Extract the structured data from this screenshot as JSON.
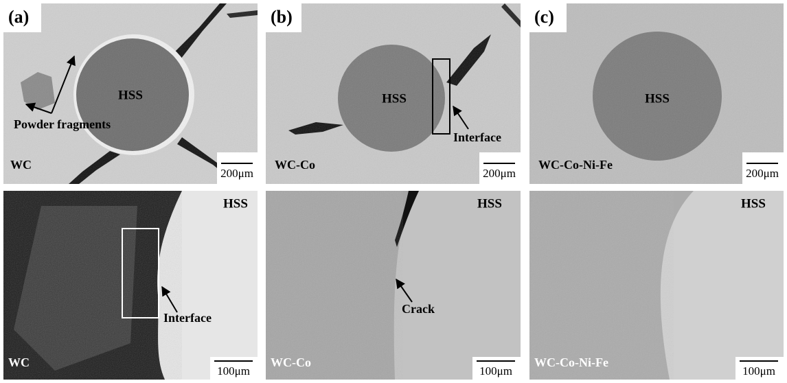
{
  "panels": [
    {
      "label": "(a)",
      "top": {
        "region": "HSS",
        "annotation": "Powder fragments",
        "material": "WC",
        "scale": "200μm"
      },
      "bottom": {
        "region": "HSS",
        "annotation": "Interface",
        "material": "WC",
        "scale": "100μm"
      }
    },
    {
      "label": "(b)",
      "top": {
        "region": "HSS",
        "annotation": "Interface",
        "material": "WC-Co",
        "scale": "200μm"
      },
      "bottom": {
        "region": "HSS",
        "annotation": "Crack",
        "material": "WC-Co",
        "scale": "100μm"
      }
    },
    {
      "label": "(c)",
      "top": {
        "region": "HSS",
        "material": "WC-Co-Ni-Fe",
        "scale": "200μm"
      },
      "bottom": {
        "region": "HSS",
        "material": "WC-Co-Ni-Fe",
        "scale": "100μm"
      }
    }
  ]
}
